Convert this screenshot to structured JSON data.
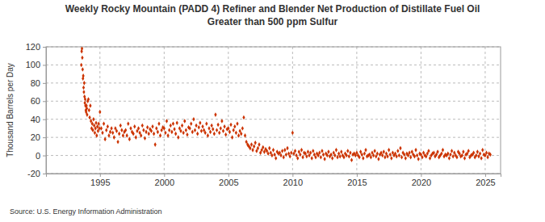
{
  "chart_data": {
    "type": "scatter",
    "title": [
      "Weekly Rocky Mountain (PADD 4)  Refiner and Blender Net Production of Distillate Fuel Oil",
      "Greater than 500 ppm Sulfur"
    ],
    "y_label": "Thousand Barrels per Day",
    "source": "Source: U.S. Energy Information Administration",
    "xlim": [
      1990.8,
      2026.2
    ],
    "xticks": [
      1995,
      2000,
      2005,
      2010,
      2015,
      2020,
      2025
    ],
    "ylim": [
      -20,
      120
    ],
    "yticks": [
      -20,
      0,
      20,
      40,
      60,
      80,
      100,
      120
    ],
    "grid": true,
    "marker": "diamond",
    "x": [
      1993.55,
      1993.575,
      1993.6,
      1993.625,
      1993.65,
      1993.675,
      1993.7,
      1993.725,
      1993.75,
      1993.775,
      1993.8,
      1993.825,
      1993.85,
      1993.875,
      1993.9,
      1993.925,
      1993.95,
      1993.975,
      1994.0,
      1994.05,
      1994.1,
      1994.15,
      1994.2,
      1994.25,
      1994.3,
      1994.35,
      1994.4,
      1994.45,
      1994.5,
      1994.55,
      1994.6,
      1994.65,
      1994.7,
      1994.75,
      1994.8,
      1994.85,
      1994.9,
      1994.95,
      1995.0,
      1995.1,
      1995.2,
      1995.3,
      1995.4,
      1995.5,
      1995.6,
      1995.7,
      1995.8,
      1995.9,
      1996.0,
      1996.1,
      1996.2,
      1996.3,
      1996.4,
      1996.5,
      1996.6,
      1996.7,
      1996.8,
      1996.9,
      1997.0,
      1997.1,
      1997.2,
      1997.3,
      1997.4,
      1997.5,
      1997.6,
      1997.7,
      1997.8,
      1997.9,
      1998.0,
      1998.1,
      1998.2,
      1998.3,
      1998.4,
      1998.5,
      1998.6,
      1998.7,
      1998.8,
      1998.9,
      1999.0,
      1999.1,
      1999.2,
      1999.3,
      1999.4,
      1999.5,
      1999.6,
      1999.7,
      1999.8,
      1999.9,
      2000.0,
      2000.1,
      2000.2,
      2000.3,
      2000.4,
      2000.5,
      2000.6,
      2000.7,
      2000.8,
      2000.9,
      2001.0,
      2001.1,
      2001.2,
      2001.3,
      2001.4,
      2001.5,
      2001.6,
      2001.7,
      2001.8,
      2001.9,
      2002.0,
      2002.1,
      2002.2,
      2002.3,
      2002.4,
      2002.5,
      2002.6,
      2002.7,
      2002.8,
      2002.9,
      2003.0,
      2003.1,
      2003.2,
      2003.3,
      2003.4,
      2003.5,
      2003.6,
      2003.7,
      2003.8,
      2003.9,
      2004.0,
      2004.1,
      2004.2,
      2004.3,
      2004.4,
      2004.5,
      2004.6,
      2004.7,
      2004.8,
      2004.9,
      2005.0,
      2005.1,
      2005.2,
      2005.3,
      2005.4,
      2005.5,
      2005.6,
      2005.7,
      2005.8,
      2005.9,
      2006.0,
      2006.1,
      2006.2,
      2006.3,
      2006.4,
      2006.5,
      2006.6,
      2006.7,
      2006.8,
      2006.9,
      2007.0,
      2007.1,
      2007.2,
      2007.3,
      2007.4,
      2007.5,
      2007.6,
      2007.7,
      2007.8,
      2007.9,
      2008.0,
      2008.1,
      2008.2,
      2008.3,
      2008.4,
      2008.5,
      2008.6,
      2008.7,
      2008.8,
      2008.9,
      2009.0,
      2009.1,
      2009.2,
      2009.3,
      2009.4,
      2009.5,
      2009.6,
      2009.7,
      2009.8,
      2009.9,
      2010.0,
      2010.1,
      2010.2,
      2010.3,
      2010.4,
      2010.5,
      2010.6,
      2010.7,
      2010.8,
      2010.9,
      2011.0,
      2011.1,
      2011.2,
      2011.3,
      2011.4,
      2011.5,
      2011.6,
      2011.7,
      2011.8,
      2011.9,
      2012.0,
      2012.1,
      2012.2,
      2012.3,
      2012.4,
      2012.5,
      2012.6,
      2012.7,
      2012.8,
      2012.9,
      2013.0,
      2013.1,
      2013.2,
      2013.3,
      2013.4,
      2013.5,
      2013.6,
      2013.7,
      2013.8,
      2013.9,
      2014.0,
      2014.1,
      2014.2,
      2014.3,
      2014.4,
      2014.5,
      2014.6,
      2014.7,
      2014.8,
      2014.9,
      2015.0,
      2015.1,
      2015.2,
      2015.3,
      2015.4,
      2015.5,
      2015.6,
      2015.7,
      2015.8,
      2015.9,
      2016.0,
      2016.1,
      2016.2,
      2016.3,
      2016.4,
      2016.5,
      2016.6,
      2016.7,
      2016.8,
      2016.9,
      2017.0,
      2017.1,
      2017.2,
      2017.3,
      2017.4,
      2017.5,
      2017.6,
      2017.7,
      2017.8,
      2017.9,
      2018.0,
      2018.1,
      2018.2,
      2018.3,
      2018.4,
      2018.5,
      2018.6,
      2018.7,
      2018.8,
      2018.9,
      2019.0,
      2019.1,
      2019.2,
      2019.3,
      2019.4,
      2019.5,
      2019.6,
      2019.7,
      2019.8,
      2019.9,
      2020.0,
      2020.1,
      2020.2,
      2020.3,
      2020.4,
      2020.5,
      2020.6,
      2020.7,
      2020.8,
      2020.9,
      2021.0,
      2021.1,
      2021.2,
      2021.3,
      2021.4,
      2021.5,
      2021.6,
      2021.7,
      2021.8,
      2021.9,
      2022.0,
      2022.1,
      2022.2,
      2022.3,
      2022.4,
      2022.5,
      2022.6,
      2022.7,
      2022.8,
      2022.9,
      2023.0,
      2023.1,
      2023.2,
      2023.3,
      2023.4,
      2023.5,
      2023.6,
      2023.7,
      2023.8,
      2023.9,
      2024.0,
      2024.1,
      2024.2,
      2024.3,
      2024.4,
      2024.5,
      2024.6,
      2024.7,
      2024.8,
      2024.9,
      2025.0,
      2025.1,
      2025.2,
      2025.3,
      2025.4
    ],
    "series": [
      {
        "color": "#cc3300",
        "values": [
          100,
          115,
          118,
          108,
          95,
          85,
          88,
          75,
          70,
          80,
          65,
          58,
          62,
          55,
          50,
          48,
          55,
          52,
          45,
          60,
          62,
          50,
          42,
          55,
          38,
          30,
          35,
          28,
          40,
          33,
          25,
          30,
          36,
          22,
          32,
          27,
          35,
          30,
          48,
          30,
          25,
          35,
          18,
          28,
          32,
          22,
          26,
          30,
          25,
          20,
          30,
          27,
          15,
          24,
          33,
          28,
          22,
          26,
          28,
          22,
          35,
          18,
          30,
          26,
          24,
          32,
          20,
          27,
          30,
          25,
          22,
          33,
          28,
          19,
          26,
          31,
          24,
          29,
          27,
          32,
          24,
          12,
          30,
          26,
          35,
          22,
          28,
          31,
          30,
          25,
          38,
          22,
          28,
          33,
          26,
          35,
          29,
          24,
          36,
          20,
          30,
          27,
          33,
          25,
          38,
          28,
          23,
          31,
          30,
          35,
          26,
          40,
          28,
          33,
          24,
          31,
          36,
          27,
          32,
          28,
          25,
          35,
          22,
          30,
          26,
          33,
          29,
          24,
          45,
          28,
          34,
          25,
          30,
          38,
          27,
          32,
          23,
          29,
          30,
          26,
          34,
          20,
          28,
          32,
          25,
          35,
          22,
          27,
          24,
          30,
          42,
          22,
          15,
          12,
          10,
          8,
          12,
          6,
          10,
          14,
          5,
          8,
          12,
          3,
          6,
          9,
          4,
          7,
          5,
          2,
          8,
          3,
          0,
          6,
          1,
          -3,
          4,
          2,
          3,
          0,
          5,
          -2,
          6,
          1,
          8,
          2,
          -1,
          3,
          25,
          2,
          5,
          0,
          -3,
          4,
          1,
          6,
          -2,
          3,
          2,
          -1,
          4,
          0,
          3,
          -3,
          5,
          1,
          -2,
          2,
          0,
          3,
          -2,
          5,
          1,
          -4,
          2,
          0,
          4,
          -1,
          1,
          -3,
          3,
          0,
          6,
          -2,
          2,
          -1,
          4,
          0,
          -2,
          2,
          0,
          5,
          -1,
          3,
          -5,
          1,
          2,
          0,
          3,
          0,
          -2,
          4,
          1,
          -3,
          2,
          6,
          -1,
          0,
          1,
          -2,
          3,
          0,
          5,
          -1,
          2,
          -4,
          1,
          3,
          0,
          4,
          -2,
          2,
          -1,
          6,
          1,
          -3,
          3,
          0,
          2,
          -1,
          5,
          0,
          8,
          -2,
          3,
          1,
          -3,
          2,
          0,
          3,
          -2,
          4,
          1,
          -1,
          6,
          0,
          -4,
          2,
          1,
          -2,
          3,
          0,
          -1,
          2,
          5,
          -3,
          0,
          2,
          3,
          -1,
          1,
          4,
          -2,
          0,
          2,
          6,
          -1,
          1,
          0,
          2,
          -3,
          1,
          5,
          -1,
          3,
          0,
          -2,
          4,
          2,
          -1,
          0,
          4,
          -3,
          1,
          2,
          5,
          -2,
          0,
          1,
          3,
          -2,
          0,
          4,
          -1,
          2,
          -3,
          6,
          1,
          0,
          3,
          -2,
          2,
          1
        ]
      }
    ]
  }
}
